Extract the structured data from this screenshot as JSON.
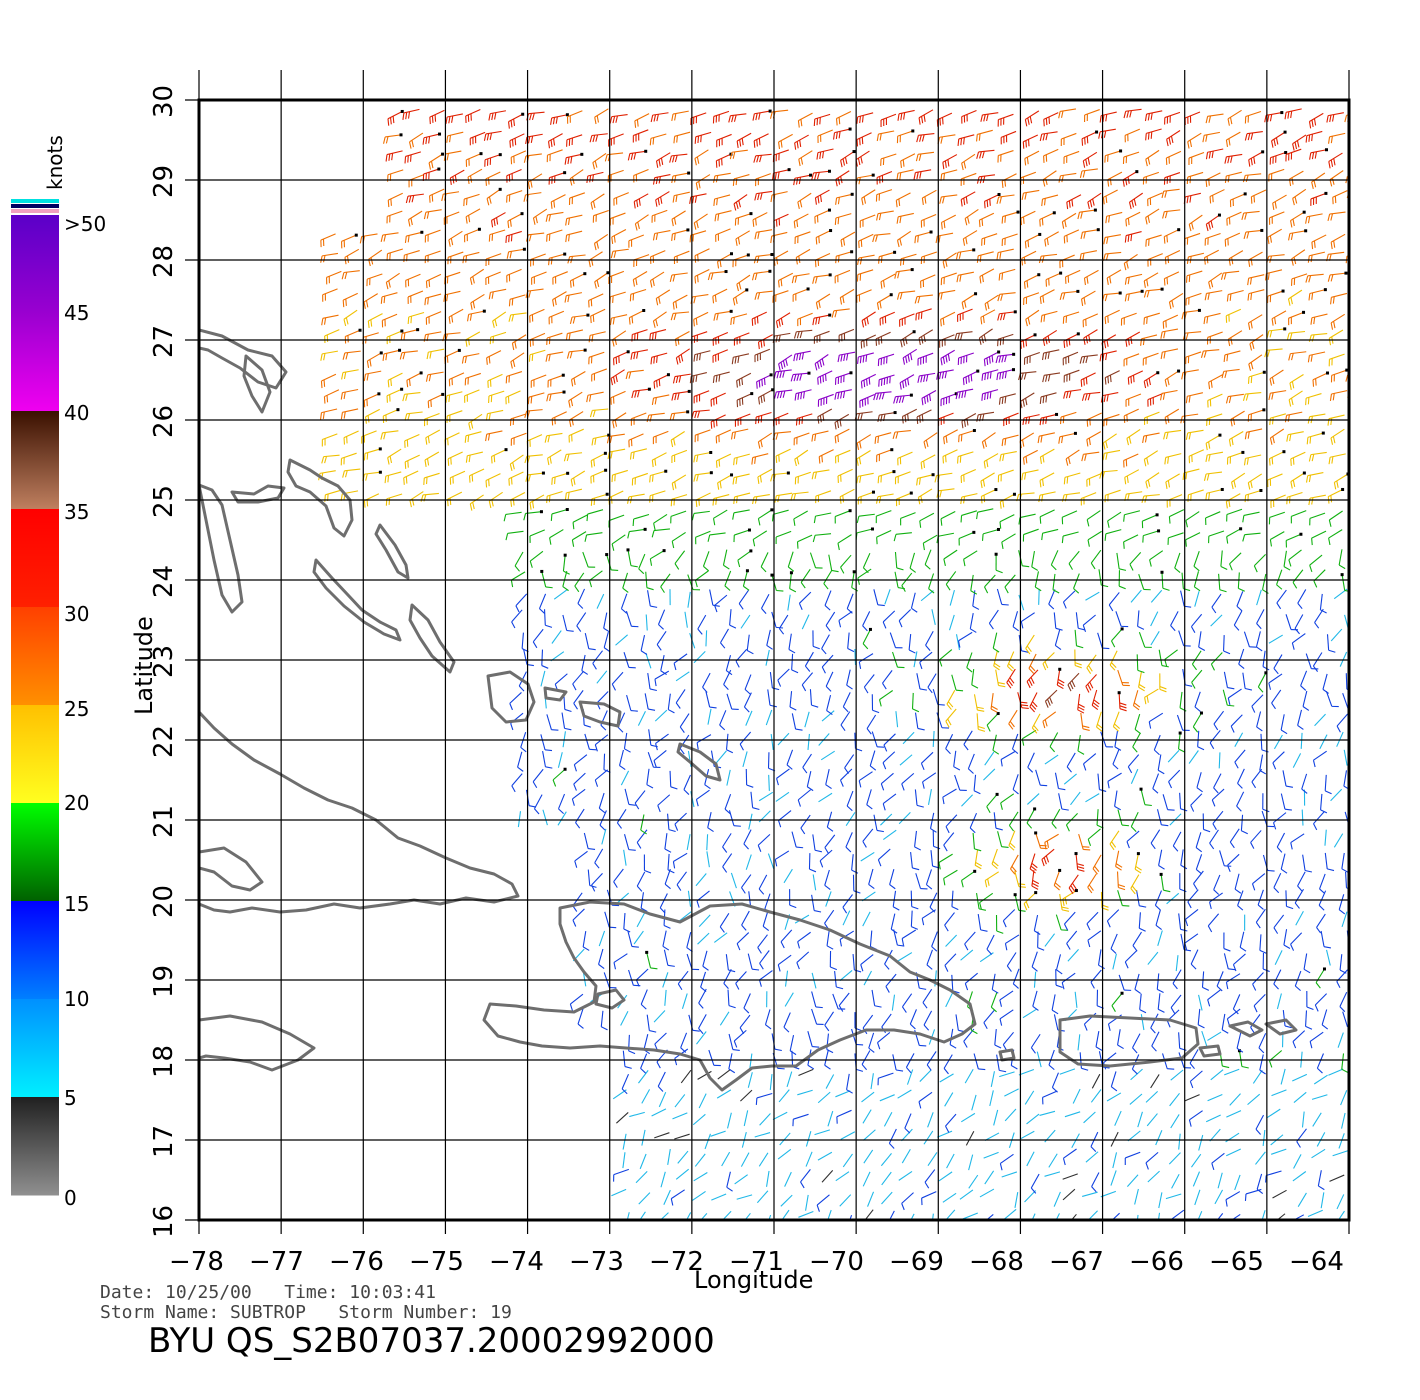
{
  "map": {
    "lon_range": [
      -78,
      -64
    ],
    "lat_range": [
      16,
      30
    ],
    "lon_ticks": [
      "−78",
      "−77",
      "−76",
      "−75",
      "−74",
      "−73",
      "−72",
      "−71",
      "−70",
      "−69",
      "−68",
      "−67",
      "−66",
      "−65",
      "−64"
    ],
    "lat_ticks": [
      "16",
      "17",
      "18",
      "19",
      "20",
      "21",
      "22",
      "23",
      "24",
      "25",
      "26",
      "27",
      "28",
      "29",
      "30"
    ],
    "xlabel": "Longitude",
    "ylabel": "Latitude",
    "coastline_color": "#6e6e6e",
    "grid": true
  },
  "colorbar": {
    "title": "knots",
    "labels": [
      ">50",
      "45",
      "40",
      "35",
      "30",
      "25",
      "20",
      "15",
      "10",
      "5",
      "0"
    ],
    "bands": [
      {
        "from": 50,
        "to": 45,
        "colors": [
          "#5a00c8",
          "#9a00d0"
        ]
      },
      {
        "from": 45,
        "to": 40,
        "colors": [
          "#9a00d0",
          "#f000f0"
        ]
      },
      {
        "from": 40,
        "to": 35,
        "colors": [
          "#3a1000",
          "#c08060"
        ]
      },
      {
        "from": 35,
        "to": 30,
        "colors": [
          "#ff0000",
          "#ff2000"
        ]
      },
      {
        "from": 30,
        "to": 25,
        "colors": [
          "#ff4000",
          "#ff9000"
        ]
      },
      {
        "from": 25,
        "to": 20,
        "colors": [
          "#ffc000",
          "#ffff20"
        ]
      },
      {
        "from": 20,
        "to": 15,
        "colors": [
          "#00ff00",
          "#006000"
        ]
      },
      {
        "from": 15,
        "to": 10,
        "colors": [
          "#0000ff",
          "#0080ff"
        ]
      },
      {
        "from": 10,
        "to": 5,
        "colors": [
          "#0090ff",
          "#00f0ff"
        ]
      },
      {
        "from": 5,
        "to": 0,
        "colors": [
          "#202020",
          "#909090"
        ]
      }
    ]
  },
  "footer": {
    "date_line": "Date: 10/25/00   Time: 10:03:41",
    "storm_line": "Storm Name: SUBTROP   Storm Number: 19",
    "file_name": "BYU QS_S2B07037.20002992000"
  }
}
